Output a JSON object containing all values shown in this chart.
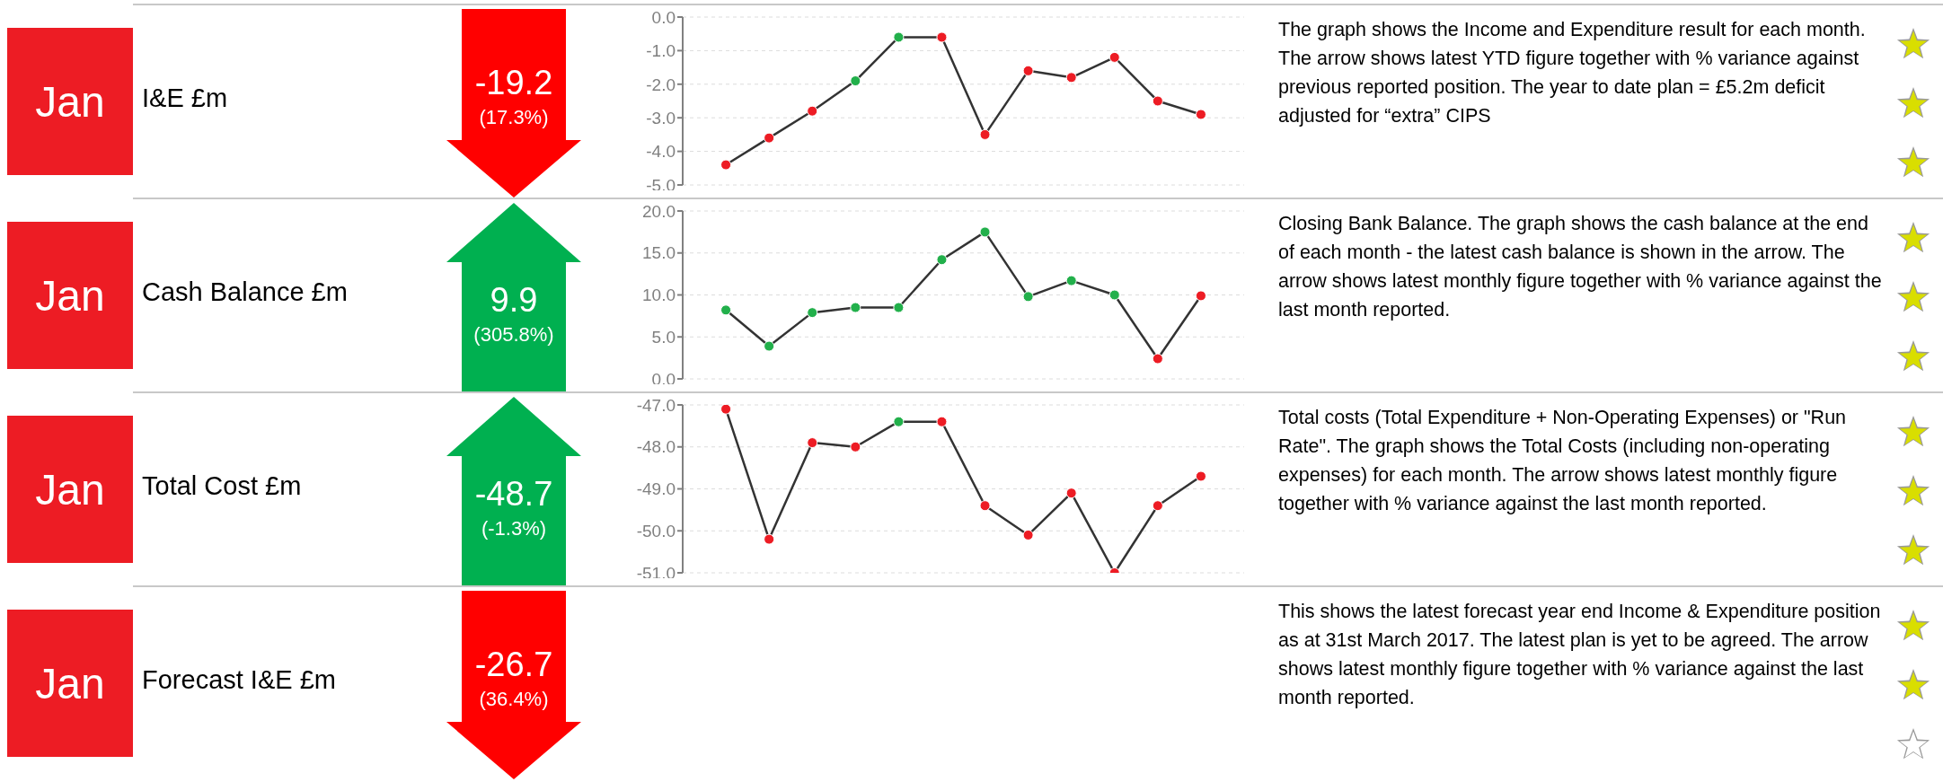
{
  "chart_data": [
    {
      "type": "line",
      "ylabel": "I&E £m",
      "annotations": [
        "Jan",
        "-19.2",
        "(17.3%)",
        "The graph shows the Income and Expenditure result for each month.  The arrow shows latest YTD figure together with % variance against previous reported position. The year to date plan = £5.2m deficit adjusted for “extra” CIPS"
      ],
      "categories": [
        null,
        null,
        null,
        null,
        null,
        null,
        null,
        null,
        null,
        null,
        null,
        null
      ],
      "series": [
        {
          "color": "#333333",
          "colors": [
            "#ed1c24",
            "#ed1c24",
            "#ed1c24",
            "#22b04b",
            "#22b04b",
            "#ed1c24",
            "#ed1c24",
            "#ed1c24",
            "#ed1c24",
            "#ed1c24",
            "#ed1c24",
            "#ed1c24"
          ],
          "values": [
            -4.4,
            -3.6,
            -2.8,
            -1.9,
            -0.6,
            -0.6,
            -3.5,
            -1.6,
            -1.8,
            -1.2,
            -2.5,
            -2.9
          ]
        }
      ],
      "ylim": [
        -5,
        0
      ],
      "yticks": [
        {
          "value": -5,
          "label": "-5.0"
        },
        {
          "value": -4,
          "label": "-4.0"
        },
        {
          "value": -3,
          "label": "-3.0"
        },
        {
          "value": -2,
          "label": "-2.0"
        },
        {
          "value": -1,
          "label": "-1.0"
        },
        {
          "value": 0,
          "label": "0.0"
        }
      ],
      "grid": "y",
      "marker": "circle",
      "line_style": "solid",
      "tick_labels": "y"
    },
    {
      "type": "line",
      "ylabel": "Cash Balance £m",
      "annotations": [
        "Jan",
        "9.9",
        "(305.8%)",
        "Closing Bank Balance.  The graph shows the cash balance at the end of each month - the latest cash balance is shown in the arrow.  The arrow shows latest monthly figure together with % variance against the last month reported."
      ],
      "categories": [
        null,
        null,
        null,
        null,
        null,
        null,
        null,
        null,
        null,
        null,
        null,
        null
      ],
      "series": [
        {
          "color": "#333333",
          "colors": [
            "#22b04b",
            "#22b04b",
            "#22b04b",
            "#22b04b",
            "#22b04b",
            "#22b04b",
            "#22b04b",
            "#22b04b",
            "#22b04b",
            "#22b04b",
            "#ed1c24",
            "#ed1c24"
          ],
          "values": [
            8.2,
            3.9,
            7.9,
            8.5,
            8.5,
            14.2,
            17.5,
            9.8,
            11.7,
            10.0,
            2.4,
            9.9
          ]
        }
      ],
      "ylim": [
        0,
        20
      ],
      "yticks": [
        {
          "value": 0,
          "label": "0.0"
        },
        {
          "value": 5,
          "label": "5.0"
        },
        {
          "value": 10,
          "label": "10.0"
        },
        {
          "value": 15,
          "label": "15.0"
        },
        {
          "value": 20,
          "label": "20.0"
        }
      ],
      "grid": "y",
      "marker": "circle",
      "line_style": "solid",
      "tick_labels": "y"
    },
    {
      "type": "line",
      "ylabel": "Total Cost £m",
      "annotations": [
        "Jan",
        "-48.7",
        "(-1.3%)",
        "Total costs (Total Expenditure + Non-Operating Expenses) or \"Run Rate\".  The graph shows the Total Costs (including non-operating expenses) for each month.  The arrow shows latest monthly figure together with % variance against the last month reported."
      ],
      "categories": [
        null,
        null,
        null,
        null,
        null,
        null,
        null,
        null,
        null,
        null,
        null,
        null
      ],
      "series": [
        {
          "color": "#333333",
          "colors": [
            "#ed1c24",
            "#ed1c24",
            "#ed1c24",
            "#ed1c24",
            "#22b04b",
            "#ed1c24",
            "#ed1c24",
            "#ed1c24",
            "#ed1c24",
            "#ed1c24",
            "#ed1c24",
            "#ed1c24"
          ],
          "values": [
            -47.1,
            -50.2,
            -47.9,
            -48.0,
            -47.4,
            -47.4,
            -49.4,
            -50.1,
            -49.1,
            -51.0,
            -49.4,
            -48.7
          ]
        }
      ],
      "ylim": [
        -51,
        -47
      ],
      "yticks": [
        {
          "value": -51,
          "label": "-51.0"
        },
        {
          "value": -50,
          "label": "-50.0"
        },
        {
          "value": -49,
          "label": "-49.0"
        },
        {
          "value": -48,
          "label": "-48.0"
        },
        {
          "value": -47,
          "label": "-47.0"
        }
      ],
      "grid": "y",
      "marker": "circle",
      "line_style": "solid",
      "tick_labels": "y"
    },
    {
      "type": "other",
      "ylabel": "Forecast I&E £m",
      "annotations": [
        "Jan",
        "-26.7",
        "(36.4%)",
        "This shows the latest forecast year end Income & Expenditure position as at 31st March 2017. The latest plan is yet to be agreed.  The arrow shows latest monthly figure together with % variance against the last month reported."
      ]
    }
  ]
}
